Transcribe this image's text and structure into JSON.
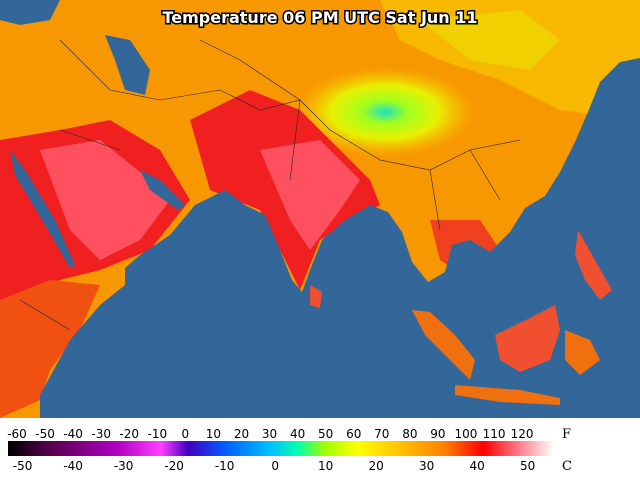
{
  "title": "Temperature 06 PM UTC Sat Jun 11",
  "legend": {
    "fahrenheit": {
      "ticks": [
        -60,
        -50,
        -40,
        -30,
        -20,
        -10,
        0,
        10,
        20,
        30,
        40,
        50,
        60,
        70,
        80,
        90,
        100,
        110,
        120
      ],
      "unit": "F"
    },
    "celsius": {
      "ticks": [
        -50,
        -40,
        -30,
        -20,
        -10,
        0,
        10,
        20,
        30,
        40,
        50
      ],
      "unit": "C"
    }
  }
}
